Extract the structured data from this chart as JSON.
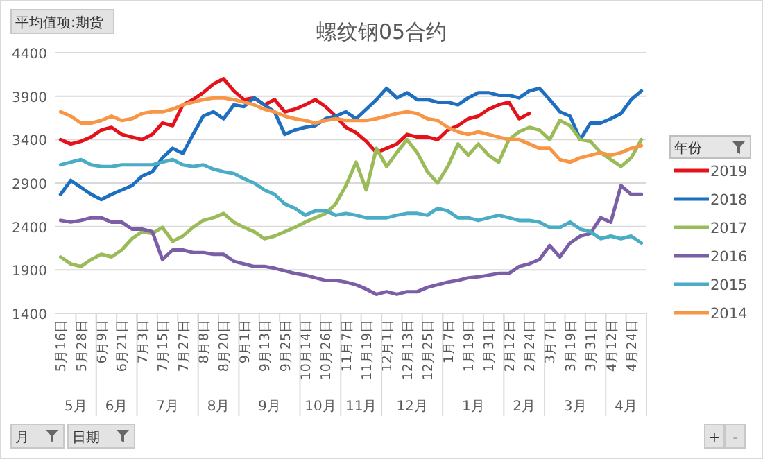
{
  "chart_data": {
    "type": "line",
    "title": "螺纹钢05合约",
    "legend_title": "年份",
    "legend": "right",
    "grid": "y",
    "marker": "none",
    "line_style": "solid",
    "categories": [
      "5月16日",
      null,
      "5月28日",
      null,
      "6月9日",
      null,
      "6月21日",
      null,
      "7月3日",
      null,
      "7月15日",
      null,
      "7月27日",
      null,
      "8月8日",
      null,
      "8月20日",
      null,
      "9月1日",
      null,
      "9月13日",
      null,
      "9月25日",
      null,
      "10月14日",
      null,
      "10月26日",
      null,
      "11月7日",
      null,
      "11月19日",
      null,
      "12月1日",
      null,
      "12月13日",
      null,
      "12月25日",
      null,
      "1月7日",
      null,
      "1月19日",
      null,
      "1月31日",
      null,
      "2月12日",
      null,
      "2月24日",
      null,
      "3月7日",
      null,
      "3月19日",
      null,
      "3月31日",
      null,
      "4月12日",
      null,
      "4月24日",
      null
    ],
    "ylim": [
      1400,
      4400
    ],
    "yticks": [
      1400,
      1900,
      2400,
      2900,
      3400,
      3900,
      4400
    ],
    "series": [
      {
        "name": "2019",
        "color": "#e3121b",
        "values": [
          3400,
          3350,
          3380,
          3430,
          3510,
          3540,
          3460,
          3430,
          3400,
          3460,
          3590,
          3560,
          3800,
          3860,
          3940,
          4040,
          4100,
          3960,
          3860,
          3880,
          3800,
          3860,
          3720,
          3750,
          3800,
          3860,
          3780,
          3670,
          3540,
          3480,
          3380,
          3250,
          3300,
          3350,
          3460,
          3430,
          3430,
          3400,
          3510,
          3560,
          3640,
          3670,
          3750,
          3800,
          3830,
          3640,
          3700,
          null,
          null,
          null,
          null,
          null,
          null,
          null,
          null,
          null,
          null,
          null
        ]
      },
      {
        "name": "2018",
        "color": "#1f6fc0",
        "values": [
          2770,
          2930,
          2850,
          2770,
          2710,
          2770,
          2820,
          2870,
          2980,
          3030,
          3190,
          3300,
          3240,
          3460,
          3670,
          3720,
          3640,
          3800,
          3780,
          3880,
          3800,
          3720,
          3460,
          3510,
          3540,
          3560,
          3640,
          3670,
          3720,
          3640,
          3750,
          3860,
          3990,
          3880,
          3940,
          3860,
          3860,
          3830,
          3830,
          3800,
          3880,
          3940,
          3940,
          3910,
          3910,
          3880,
          3960,
          3990,
          3860,
          3720,
          3670,
          3400,
          3590,
          3590,
          3640,
          3700,
          3860,
          3960
        ]
      },
      {
        "name": "2017",
        "color": "#9bbb59",
        "values": [
          2050,
          1970,
          1940,
          2020,
          2080,
          2050,
          2130,
          2260,
          2340,
          2320,
          2390,
          2230,
          2290,
          2390,
          2470,
          2500,
          2550,
          2450,
          2390,
          2340,
          2260,
          2290,
          2340,
          2390,
          2450,
          2500,
          2550,
          2660,
          2870,
          3140,
          2820,
          3300,
          3090,
          3250,
          3400,
          3250,
          3030,
          2900,
          3090,
          3350,
          3220,
          3350,
          3220,
          3140,
          3400,
          3490,
          3540,
          3510,
          3400,
          3620,
          3560,
          3400,
          3380,
          3250,
          3170,
          3090,
          3190,
          3400
        ]
      },
      {
        "name": "2016",
        "color": "#7b5fa6",
        "values": [
          2470,
          2450,
          2470,
          2500,
          2500,
          2450,
          2450,
          2370,
          2370,
          2340,
          2020,
          2130,
          2130,
          2100,
          2100,
          2080,
          2080,
          2000,
          1970,
          1940,
          1940,
          1920,
          1890,
          1860,
          1840,
          1810,
          1780,
          1780,
          1760,
          1730,
          1680,
          1620,
          1650,
          1620,
          1650,
          1650,
          1700,
          1730,
          1760,
          1780,
          1810,
          1820,
          1840,
          1860,
          1860,
          1940,
          1970,
          2020,
          2180,
          2050,
          2210,
          2290,
          2320,
          2500,
          2450,
          2870,
          2770,
          2770
        ]
      },
      {
        "name": "2015",
        "color": "#4bacc6",
        "values": [
          3110,
          3140,
          3170,
          3110,
          3090,
          3090,
          3110,
          3110,
          3110,
          3110,
          3140,
          3170,
          3110,
          3090,
          3110,
          3060,
          3030,
          3010,
          2950,
          2900,
          2820,
          2770,
          2660,
          2610,
          2530,
          2580,
          2580,
          2530,
          2550,
          2530,
          2500,
          2500,
          2500,
          2530,
          2550,
          2550,
          2530,
          2610,
          2580,
          2500,
          2500,
          2470,
          2500,
          2530,
          2500,
          2470,
          2470,
          2450,
          2390,
          2390,
          2450,
          2370,
          2340,
          2260,
          2290,
          2260,
          2290,
          2210
        ]
      },
      {
        "name": "2014",
        "color": "#f79646",
        "values": [
          3720,
          3670,
          3590,
          3590,
          3620,
          3670,
          3620,
          3640,
          3700,
          3720,
          3720,
          3750,
          3800,
          3830,
          3860,
          3880,
          3880,
          3860,
          3830,
          3800,
          3750,
          3720,
          3670,
          3640,
          3620,
          3590,
          3620,
          3640,
          3620,
          3620,
          3620,
          3640,
          3670,
          3700,
          3720,
          3700,
          3640,
          3620,
          3540,
          3490,
          3460,
          3490,
          3460,
          3430,
          3400,
          3400,
          3350,
          3300,
          3300,
          3170,
          3140,
          3190,
          3220,
          3250,
          3220,
          3250,
          3300,
          3330
        ]
      }
    ],
    "annotations": [
      "平均值项:期货",
      "月",
      "日期",
      "+",
      "-",
      "5月",
      "6月",
      "7月",
      "8月",
      "9月",
      "10月",
      "11月",
      "12月",
      "1月",
      "2月",
      "3月",
      "4月"
    ]
  }
}
